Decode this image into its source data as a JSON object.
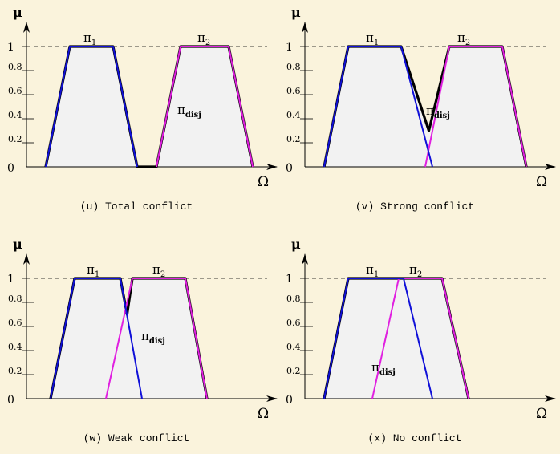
{
  "colors": {
    "background": "#faf3dc",
    "fill": "#f2f2f2",
    "pi1": "#1010d8",
    "pi2": "#e020e0",
    "disj": "#000000",
    "axis": "#000000"
  },
  "axis": {
    "y_symbol": "μ",
    "x_symbol": "Ω",
    "one_label": "1",
    "zero_label": "0",
    "ticks": [
      "0.8",
      "0.6",
      "0.4",
      "0.2"
    ]
  },
  "labels": {
    "pi_symbol": "π",
    "pi1_sub": "1",
    "pi2_sub": "2",
    "disj_sub": "disj"
  },
  "chart_data": [
    {
      "type": "area",
      "caption": "(u) Total conflict",
      "xlim": [
        0,
        10
      ],
      "ylim": [
        0,
        1
      ],
      "pi1": [
        [
          0.8,
          0
        ],
        [
          1.8,
          1
        ],
        [
          3.6,
          1
        ],
        [
          4.6,
          0
        ]
      ],
      "pi2": [
        [
          5.4,
          0
        ],
        [
          6.4,
          1
        ],
        [
          8.4,
          1
        ],
        [
          9.4,
          0
        ]
      ],
      "disj": [
        [
          0.8,
          0
        ],
        [
          1.8,
          1
        ],
        [
          3.6,
          1
        ],
        [
          4.6,
          0
        ],
        [
          5.4,
          0
        ],
        [
          6.4,
          1
        ],
        [
          8.4,
          1
        ],
        [
          9.4,
          0
        ]
      ]
    },
    {
      "type": "area",
      "caption": "(v) Strong conflict",
      "xlim": [
        0,
        10
      ],
      "ylim": [
        0,
        1
      ],
      "pi1": [
        [
          0.8,
          0
        ],
        [
          1.8,
          1
        ],
        [
          4.0,
          1
        ],
        [
          5.3,
          0
        ]
      ],
      "pi2": [
        [
          5.0,
          0
        ],
        [
          6.0,
          1
        ],
        [
          8.2,
          1
        ],
        [
          9.2,
          0
        ]
      ],
      "disj": [
        [
          0.8,
          0
        ],
        [
          1.8,
          1
        ],
        [
          4.0,
          1
        ],
        [
          5.15,
          0.3
        ],
        [
          6.0,
          1
        ],
        [
          8.2,
          1
        ],
        [
          9.2,
          0
        ]
      ]
    },
    {
      "type": "area",
      "caption": "(w) Weak conflict",
      "xlim": [
        0,
        10
      ],
      "ylim": [
        0,
        1
      ],
      "pi1": [
        [
          1.0,
          0
        ],
        [
          2.0,
          1
        ],
        [
          3.9,
          1
        ],
        [
          4.8,
          0
        ]
      ],
      "pi2": [
        [
          3.3,
          0
        ],
        [
          4.4,
          1
        ],
        [
          6.6,
          1
        ],
        [
          7.5,
          0
        ]
      ],
      "disj": [
        [
          1.0,
          0
        ],
        [
          2.0,
          1
        ],
        [
          3.9,
          1
        ],
        [
          4.18,
          0.7
        ],
        [
          4.4,
          1
        ],
        [
          6.6,
          1
        ],
        [
          7.5,
          0
        ]
      ]
    },
    {
      "type": "area",
      "caption": "(x) No conflict",
      "xlim": [
        0,
        10
      ],
      "ylim": [
        0,
        1
      ],
      "pi1": [
        [
          0.8,
          0
        ],
        [
          1.8,
          1
        ],
        [
          4.1,
          1
        ],
        [
          5.3,
          0
        ]
      ],
      "pi2": [
        [
          2.8,
          0
        ],
        [
          3.9,
          1
        ],
        [
          5.7,
          1
        ],
        [
          6.8,
          0
        ]
      ],
      "disj": [
        [
          0.8,
          0
        ],
        [
          1.8,
          1
        ],
        [
          5.7,
          1
        ],
        [
          6.8,
          0
        ]
      ]
    }
  ]
}
